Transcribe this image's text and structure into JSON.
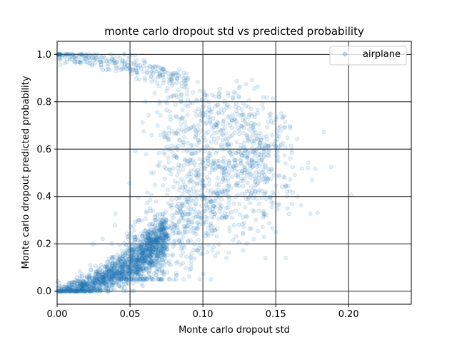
{
  "chart_data": {
    "type": "scatter",
    "title": "monte carlo dropout std vs predicted probability",
    "xlabel": "Monte carlo dropout std",
    "ylabel": "Monte carlo dropout predicted probability",
    "xlim": [
      0.0,
      0.243
    ],
    "ylim": [
      -0.055,
      1.055
    ],
    "xticks": [
      0.0,
      0.05,
      0.1,
      0.15,
      0.2
    ],
    "xtick_labels": [
      "0.00",
      "0.05",
      "0.10",
      "0.15",
      "0.20"
    ],
    "yticks": [
      0.0,
      0.2,
      0.4,
      0.6,
      0.8,
      1.0
    ],
    "ytick_labels": [
      "0.0",
      "0.2",
      "0.4",
      "0.6",
      "0.8",
      "1.0"
    ],
    "grid": true,
    "legend_position": "top-right",
    "marker_color": "#1f77b4",
    "marker_alpha": 0.12,
    "series": [
      {
        "name": "airplane",
        "description_points": [
          [
            0.0,
            0.0
          ],
          [
            0.003,
            0.001
          ],
          [
            0.006,
            0.003
          ],
          [
            0.01,
            0.005
          ],
          [
            0.015,
            0.009
          ],
          [
            0.02,
            0.015
          ],
          [
            0.025,
            0.022
          ],
          [
            0.03,
            0.032
          ],
          [
            0.035,
            0.045
          ],
          [
            0.04,
            0.062
          ],
          [
            0.045,
            0.082
          ],
          [
            0.05,
            0.1
          ],
          [
            0.055,
            0.118
          ],
          [
            0.06,
            0.14
          ],
          [
            0.065,
            0.165
          ],
          [
            0.07,
            0.195
          ],
          [
            0.075,
            0.23
          ],
          [
            0.08,
            0.27
          ],
          [
            0.085,
            0.31
          ],
          [
            0.09,
            0.35
          ],
          [
            0.095,
            0.4
          ],
          [
            0.1,
            0.45
          ],
          [
            0.105,
            0.5
          ],
          [
            0.11,
            0.55
          ],
          [
            0.115,
            0.6
          ],
          [
            0.004,
            0.998
          ],
          [
            0.01,
            0.993
          ],
          [
            0.015,
            0.988
          ],
          [
            0.02,
            0.982
          ],
          [
            0.025,
            0.975
          ],
          [
            0.03,
            0.968
          ],
          [
            0.035,
            0.96
          ],
          [
            0.04,
            0.95
          ],
          [
            0.045,
            0.94
          ],
          [
            0.05,
            0.93
          ],
          [
            0.055,
            0.915
          ],
          [
            0.06,
            0.9
          ],
          [
            0.065,
            0.885
          ],
          [
            0.07,
            0.865
          ],
          [
            0.075,
            0.845
          ],
          [
            0.08,
            0.825
          ],
          [
            0.085,
            0.8
          ],
          [
            0.09,
            0.78
          ],
          [
            0.095,
            0.76
          ],
          [
            0.1,
            0.74
          ],
          [
            0.105,
            0.72
          ],
          [
            0.11,
            0.7
          ],
          [
            0.115,
            0.69
          ],
          [
            0.12,
            0.69
          ],
          [
            0.125,
            0.68
          ],
          [
            0.13,
            0.66
          ],
          [
            0.14,
            0.64
          ],
          [
            0.15,
            0.61
          ],
          [
            0.16,
            0.56
          ],
          [
            0.172,
            0.52
          ],
          [
            0.183,
            0.673
          ],
          [
            0.188,
            0.525
          ],
          [
            0.202,
            0.407
          ],
          [
            0.175,
            0.47
          ],
          [
            0.165,
            0.4
          ],
          [
            0.158,
            0.35
          ],
          [
            0.15,
            0.25
          ],
          [
            0.157,
            0.14
          ],
          [
            0.143,
            0.14
          ],
          [
            0.135,
            0.22
          ],
          [
            0.128,
            0.27
          ],
          [
            0.12,
            0.31
          ],
          [
            0.112,
            0.35
          ],
          [
            0.092,
            0.11
          ],
          [
            0.085,
            0.15
          ],
          [
            0.078,
            0.11
          ],
          [
            0.07,
            0.09
          ],
          [
            0.065,
            0.06
          ],
          [
            0.06,
            0.05
          ],
          [
            0.055,
            0.04
          ]
        ]
      }
    ]
  }
}
